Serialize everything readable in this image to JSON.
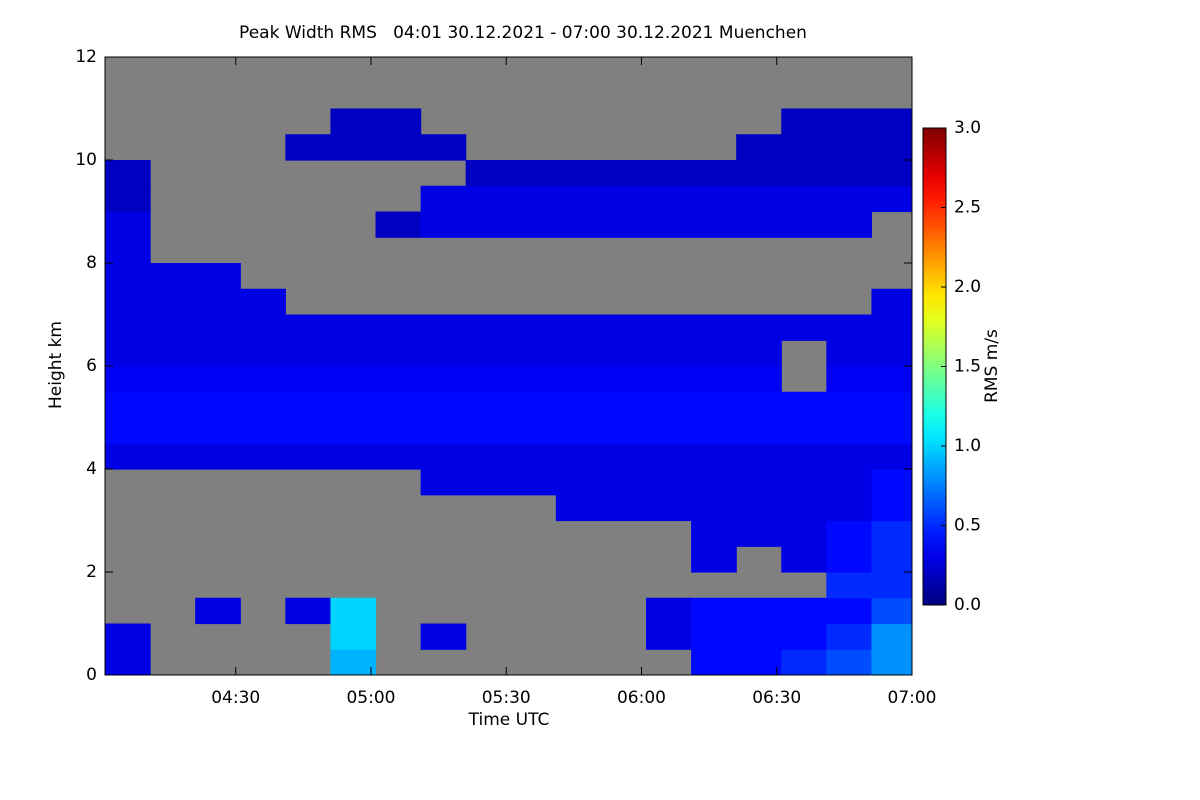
{
  "chart_data": {
    "type": "heatmap",
    "title": "Peak Width RMS   04:01 30.12.2021 - 07:00 30.12.2021 Muenchen",
    "x_label": "Time UTC",
    "y_label": "Height km",
    "colorbar_label": "RMS m/s",
    "colormap": "jet",
    "background_color": "#808080",
    "xlim": [
      241,
      420
    ],
    "ylim": [
      0,
      12
    ],
    "clim": [
      0,
      3
    ],
    "xticks": [
      {
        "value": 270,
        "label": "04:30"
      },
      {
        "value": 300,
        "label": "05:00"
      },
      {
        "value": 330,
        "label": "05:30"
      },
      {
        "value": 360,
        "label": "06:00"
      },
      {
        "value": 390,
        "label": "06:30"
      },
      {
        "value": 420,
        "label": "07:00"
      }
    ],
    "yticks": [
      0,
      2,
      4,
      6,
      8,
      10,
      12
    ],
    "cticks": [
      {
        "value": 0,
        "label": "0.0"
      },
      {
        "value": 0.5,
        "label": "0.5"
      },
      {
        "value": 1,
        "label": "1.0"
      },
      {
        "value": 1.5,
        "label": "1.5"
      },
      {
        "value": 2,
        "label": "2.0"
      },
      {
        "value": 2.5,
        "label": "2.5"
      },
      {
        "value": 3,
        "label": "3.0"
      }
    ],
    "x": [
      246,
      256,
      266,
      276,
      286,
      296,
      306,
      316,
      326,
      336,
      346,
      356,
      366,
      376,
      386,
      396,
      406,
      416
    ],
    "y": [
      0.25,
      0.75,
      1.25,
      1.75,
      2.25,
      2.75,
      3.25,
      3.75,
      4.25,
      4.75,
      5.25,
      5.75,
      6.25,
      6.75,
      7.25,
      7.75,
      8.25,
      8.75,
      9.25,
      9.75,
      10.25,
      10.75,
      11.25,
      11.75
    ],
    "z": [
      [
        0.3,
        null,
        null,
        null,
        null,
        0.9,
        null,
        null,
        null,
        null,
        null,
        null,
        null,
        0.4,
        0.4,
        0.5,
        0.6,
        0.8
      ],
      [
        0.3,
        null,
        null,
        null,
        null,
        1.0,
        null,
        0.3,
        null,
        null,
        null,
        null,
        0.3,
        0.4,
        0.4,
        0.4,
        0.5,
        0.8
      ],
      [
        null,
        null,
        0.3,
        null,
        0.3,
        1.0,
        null,
        null,
        null,
        null,
        null,
        null,
        0.3,
        0.4,
        0.4,
        0.4,
        0.4,
        0.6
      ],
      [
        null,
        null,
        null,
        null,
        null,
        null,
        null,
        null,
        null,
        null,
        null,
        null,
        null,
        null,
        null,
        null,
        0.5,
        0.5
      ],
      [
        null,
        null,
        null,
        null,
        null,
        null,
        null,
        null,
        null,
        null,
        null,
        null,
        null,
        0.3,
        null,
        0.3,
        0.4,
        0.5
      ],
      [
        null,
        null,
        null,
        null,
        null,
        null,
        null,
        null,
        null,
        null,
        null,
        null,
        null,
        0.3,
        0.3,
        0.3,
        0.4,
        0.5
      ],
      [
        null,
        null,
        null,
        null,
        null,
        null,
        null,
        null,
        null,
        null,
        0.3,
        0.3,
        0.3,
        0.3,
        0.3,
        0.3,
        0.3,
        0.4
      ],
      [
        null,
        null,
        null,
        null,
        null,
        null,
        null,
        0.3,
        0.3,
        0.3,
        0.3,
        0.3,
        0.3,
        0.3,
        0.3,
        0.3,
        0.3,
        0.4
      ],
      [
        0.3,
        0.3,
        0.3,
        0.3,
        0.3,
        0.3,
        0.3,
        0.3,
        0.3,
        0.3,
        0.3,
        0.3,
        0.3,
        0.3,
        0.3,
        0.3,
        0.3,
        0.3
      ],
      [
        0.4,
        0.4,
        0.4,
        0.4,
        0.4,
        0.4,
        0.4,
        0.4,
        0.4,
        0.4,
        0.4,
        0.4,
        0.4,
        0.4,
        0.4,
        0.4,
        0.4,
        0.4
      ],
      [
        0.4,
        0.4,
        0.4,
        0.4,
        0.4,
        0.4,
        0.4,
        0.4,
        0.4,
        0.4,
        0.4,
        0.4,
        0.4,
        0.4,
        0.4,
        0.4,
        0.4,
        0.4
      ],
      [
        0.35,
        0.35,
        0.35,
        0.35,
        0.35,
        0.35,
        0.35,
        0.35,
        0.35,
        0.35,
        0.35,
        0.35,
        0.35,
        0.35,
        0.35,
        null,
        0.35,
        0.35
      ],
      [
        0.3,
        0.3,
        0.3,
        0.3,
        0.3,
        0.3,
        0.3,
        0.3,
        0.3,
        0.3,
        0.3,
        0.3,
        0.3,
        0.3,
        0.3,
        null,
        0.3,
        0.3
      ],
      [
        0.3,
        0.3,
        0.3,
        0.3,
        0.3,
        0.3,
        0.3,
        0.3,
        0.3,
        0.3,
        0.3,
        0.3,
        0.3,
        0.3,
        0.3,
        0.3,
        0.3,
        0.3
      ],
      [
        0.3,
        0.3,
        0.3,
        0.3,
        null,
        null,
        null,
        null,
        null,
        null,
        null,
        null,
        null,
        null,
        null,
        null,
        null,
        0.3
      ],
      [
        0.3,
        0.3,
        0.3,
        null,
        null,
        null,
        null,
        null,
        null,
        null,
        null,
        null,
        null,
        null,
        null,
        null,
        null,
        null
      ],
      [
        0.3,
        null,
        null,
        null,
        null,
        null,
        null,
        null,
        null,
        null,
        null,
        null,
        null,
        null,
        null,
        null,
        null,
        null
      ],
      [
        0.3,
        null,
        null,
        null,
        null,
        null,
        0.2,
        0.3,
        0.3,
        0.3,
        0.3,
        0.3,
        0.3,
        0.3,
        0.3,
        0.3,
        0.3,
        null
      ],
      [
        0.2,
        null,
        null,
        null,
        null,
        null,
        null,
        0.3,
        0.3,
        0.3,
        0.3,
        0.3,
        0.3,
        0.3,
        0.3,
        0.3,
        0.3,
        0.3
      ],
      [
        0.2,
        null,
        null,
        null,
        null,
        null,
        null,
        null,
        0.2,
        0.2,
        0.2,
        0.2,
        0.2,
        0.2,
        0.2,
        0.2,
        0.2,
        0.2
      ],
      [
        null,
        null,
        null,
        null,
        0.2,
        0.2,
        0.2,
        0.2,
        null,
        null,
        null,
        null,
        null,
        null,
        0.2,
        0.2,
        0.2,
        0.2
      ],
      [
        null,
        null,
        null,
        null,
        null,
        0.2,
        0.2,
        null,
        null,
        null,
        null,
        null,
        null,
        null,
        null,
        0.2,
        0.2,
        0.2
      ],
      [
        null,
        null,
        null,
        null,
        null,
        null,
        null,
        null,
        null,
        null,
        null,
        null,
        null,
        null,
        null,
        null,
        null,
        null
      ],
      [
        null,
        null,
        null,
        null,
        null,
        null,
        null,
        null,
        null,
        null,
        null,
        null,
        null,
        null,
        null,
        null,
        null,
        null
      ]
    ]
  }
}
